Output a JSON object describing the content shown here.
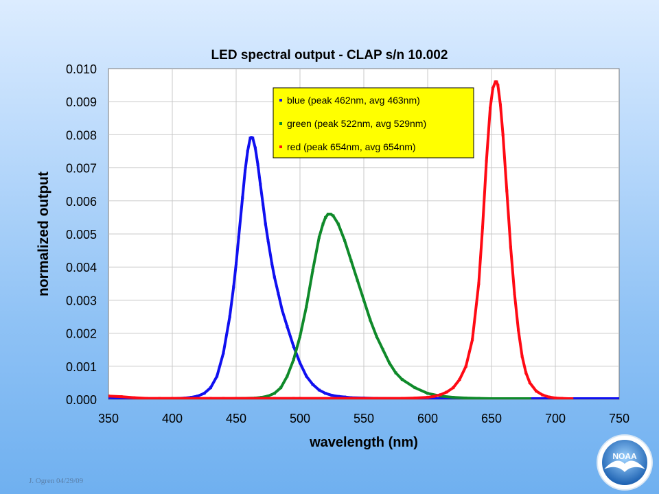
{
  "footer": {
    "author": "J. Ogren  04/29/09"
  },
  "logo": {
    "text": "NOAA"
  },
  "chart_data": {
    "type": "scatter",
    "title": "LED spectral output - CLAP s/n 10.002",
    "xlabel": "wavelength (nm)",
    "ylabel": "normalized output",
    "xlim": [
      350,
      750
    ],
    "ylim": [
      0,
      0.01
    ],
    "xticks": [
      350,
      400,
      450,
      500,
      550,
      600,
      650,
      700,
      750
    ],
    "yticks": [
      0,
      0.001,
      0.002,
      0.003,
      0.004,
      0.005,
      0.006,
      0.007,
      0.008,
      0.009,
      0.01
    ],
    "ytick_decimals": 3,
    "grid": true,
    "legend_position": "top-center",
    "legend_background": "#ffff00",
    "series": [
      {
        "name": "blue (peak 462nm, avg 463nm)",
        "color": "#1010f0",
        "x": [
          350,
          360,
          370,
          380,
          390,
          400,
          405,
          410,
          415,
          420,
          425,
          430,
          435,
          440,
          445,
          448,
          450,
          452,
          455,
          457,
          459,
          461,
          462,
          463,
          465,
          467,
          469,
          471,
          473,
          475,
          478,
          480,
          483,
          486,
          490,
          495,
          500,
          505,
          510,
          515,
          520,
          525,
          530,
          535,
          540,
          550,
          560,
          580,
          600,
          620,
          650,
          700,
          750
        ],
        "y": [
          5e-05,
          3e-05,
          2e-05,
          2e-05,
          2e-05,
          2e-05,
          3e-05,
          4e-05,
          6e-05,
          0.0001,
          0.00018,
          0.00035,
          0.0007,
          0.0014,
          0.0025,
          0.0034,
          0.0041,
          0.0049,
          0.0061,
          0.0069,
          0.0075,
          0.0079,
          0.00792,
          0.0079,
          0.0076,
          0.0071,
          0.0065,
          0.0059,
          0.0053,
          0.0048,
          0.0041,
          0.0037,
          0.0032,
          0.0027,
          0.0022,
          0.0016,
          0.0011,
          0.0007,
          0.00045,
          0.00028,
          0.00018,
          0.00012,
          9e-05,
          7e-05,
          5e-05,
          4e-05,
          3e-05,
          2e-05,
          2e-05,
          2e-05,
          2e-05,
          2e-05,
          2e-05
        ]
      },
      {
        "name": "green (peak 522nm, avg 529nm)",
        "color": "#0f8a2a",
        "x": [
          445,
          455,
          465,
          470,
          475,
          480,
          485,
          490,
          495,
          500,
          505,
          510,
          515,
          518,
          520,
          522,
          524,
          526,
          530,
          535,
          540,
          545,
          550,
          555,
          560,
          565,
          570,
          575,
          580,
          590,
          600,
          610,
          620,
          630,
          640,
          650,
          660,
          670,
          680
        ],
        "y": [
          2e-05,
          3e-05,
          4e-05,
          6e-05,
          0.0001,
          0.00018,
          0.00035,
          0.0007,
          0.0012,
          0.0019,
          0.0028,
          0.0039,
          0.0049,
          0.0053,
          0.0055,
          0.0056,
          0.0056,
          0.00555,
          0.0053,
          0.0048,
          0.0042,
          0.0036,
          0.003,
          0.0024,
          0.0019,
          0.0015,
          0.0011,
          0.0008,
          0.0006,
          0.00035,
          0.00018,
          0.0001,
          6e-05,
          4e-05,
          3e-05,
          2e-05,
          2e-05,
          2e-05,
          2e-05
        ]
      },
      {
        "name": "red (peak 654nm, avg 654nm)",
        "color": "#ff0a14",
        "x": [
          350,
          360,
          370,
          380,
          390,
          400,
          410,
          420,
          430,
          440,
          450,
          460,
          470,
          480,
          495,
          500,
          580,
          590,
          600,
          605,
          610,
          615,
          620,
          625,
          630,
          635,
          640,
          643,
          646,
          649,
          651,
          653,
          654,
          655,
          657,
          659,
          662,
          665,
          668,
          671,
          674,
          677,
          680,
          685,
          690,
          695,
          700,
          705,
          710,
          713
        ],
        "y": [
          0.0001,
          8e-05,
          5e-05,
          3e-05,
          3e-05,
          3e-05,
          3e-05,
          3e-05,
          3e-05,
          3e-05,
          3e-05,
          3e-05,
          3e-05,
          3e-05,
          3e-05,
          3e-05,
          3e-05,
          4e-05,
          6e-05,
          9e-05,
          0.00014,
          0.00022,
          0.00035,
          0.0006,
          0.001,
          0.0018,
          0.0035,
          0.0052,
          0.0072,
          0.0088,
          0.0094,
          0.0096,
          0.0096,
          0.0095,
          0.0089,
          0.008,
          0.0063,
          0.0046,
          0.0032,
          0.0021,
          0.0013,
          0.0008,
          0.0005,
          0.00025,
          0.00013,
          7e-05,
          4e-05,
          3e-05,
          2e-05,
          2e-05
        ]
      }
    ]
  }
}
